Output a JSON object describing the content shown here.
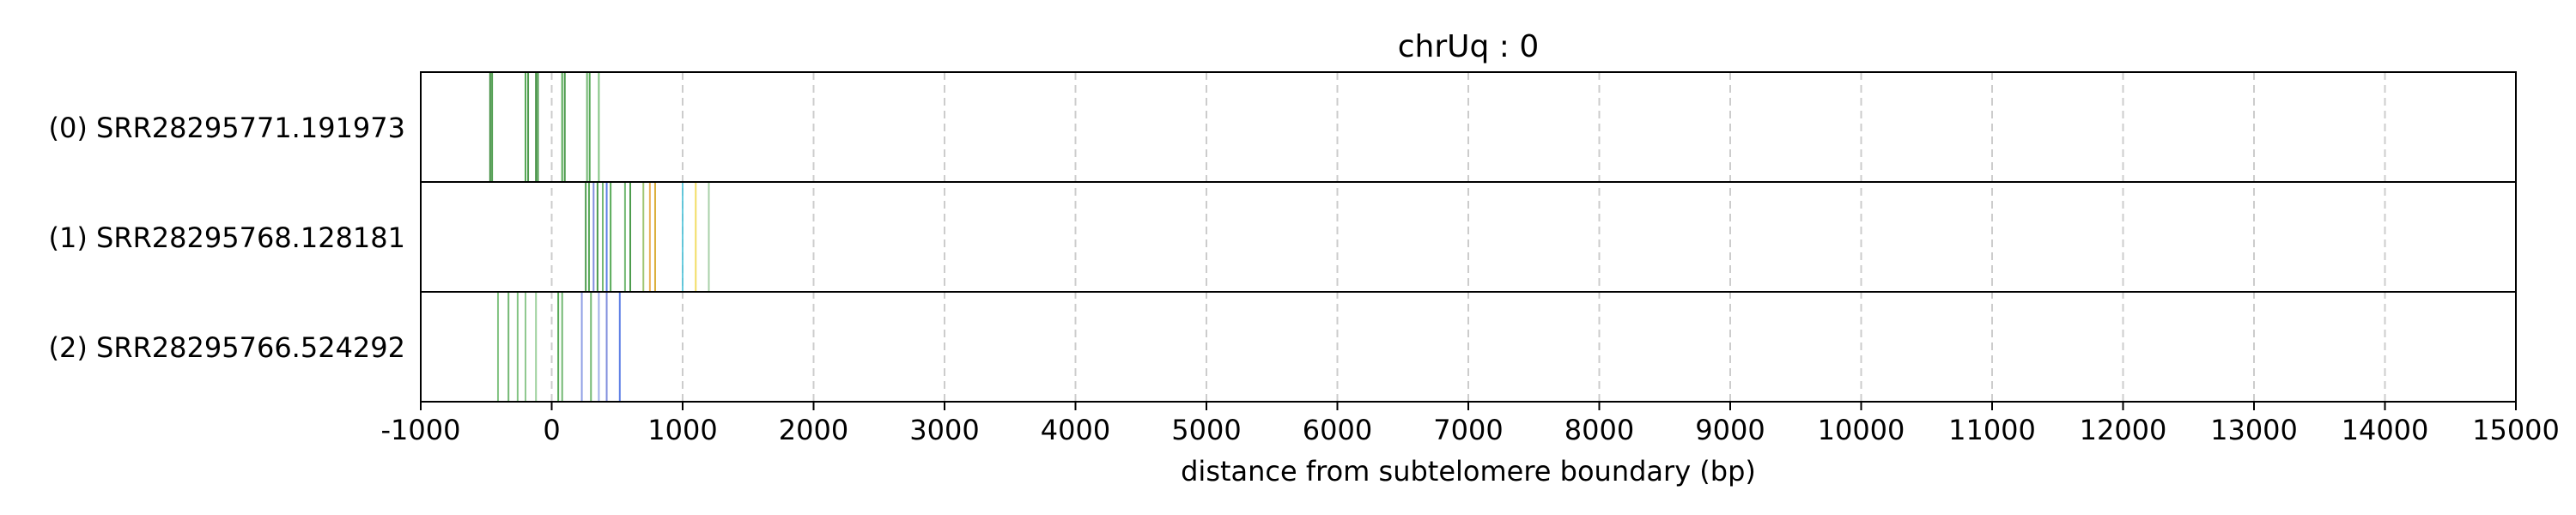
{
  "chart_data": {
    "type": "scatter",
    "title": "chrUq : 0",
    "xlabel": "distance from subtelomere boundary (bp)",
    "ylabel": "",
    "xlim": [
      -1000,
      15000
    ],
    "x_ticks": [
      -1000,
      0,
      1000,
      2000,
      3000,
      4000,
      5000,
      6000,
      7000,
      8000,
      9000,
      10000,
      11000,
      12000,
      13000,
      14000,
      15000
    ],
    "x_tick_labels": [
      "-1000",
      "0",
      "1000",
      "2000",
      "3000",
      "4000",
      "5000",
      "6000",
      "7000",
      "8000",
      "9000",
      "10000",
      "11000",
      "12000",
      "13000",
      "14000",
      "15000"
    ],
    "grid": "vertical dashed",
    "rows": [
      {
        "label": "(0) SRR28295771.191973",
        "marks": [
          {
            "x": -470,
            "color": "#1f7a1f"
          },
          {
            "x": -455,
            "color": "#2e8b2e"
          },
          {
            "x": -200,
            "color": "#3a9a3a"
          },
          {
            "x": -180,
            "color": "#2e8b2e"
          },
          {
            "x": -120,
            "color": "#1f7a1f"
          },
          {
            "x": -105,
            "color": "#2e8b2e"
          },
          {
            "x": 80,
            "color": "#3a9a3a"
          },
          {
            "x": 100,
            "color": "#2e8b2e"
          },
          {
            "x": 270,
            "color": "#5aab5a"
          },
          {
            "x": 290,
            "color": "#3a9a3a"
          },
          {
            "x": 360,
            "color": "#6cb86c"
          }
        ]
      },
      {
        "label": "(1) SRR28295768.128181",
        "marks": [
          {
            "x": 260,
            "color": "#2e8b2e"
          },
          {
            "x": 285,
            "color": "#3a9a3a"
          },
          {
            "x": 320,
            "color": "#6b7bd8"
          },
          {
            "x": 350,
            "color": "#2e8b2e"
          },
          {
            "x": 390,
            "color": "#5aab5a"
          },
          {
            "x": 420,
            "color": "#4169e1"
          },
          {
            "x": 450,
            "color": "#3a9a3a"
          },
          {
            "x": 560,
            "color": "#5aab5a"
          },
          {
            "x": 600,
            "color": "#2e8b2e"
          },
          {
            "x": 700,
            "color": "#8fbc5a"
          },
          {
            "x": 750,
            "color": "#e8a33a"
          },
          {
            "x": 790,
            "color": "#d4a017"
          },
          {
            "x": 1000,
            "color": "#4fc3d9"
          },
          {
            "x": 1100,
            "color": "#f0d84a"
          },
          {
            "x": 1200,
            "color": "#9ac89a"
          }
        ]
      },
      {
        "label": "(2) SRR28295766.524292",
        "marks": [
          {
            "x": -410,
            "color": "#6cb86c"
          },
          {
            "x": -330,
            "color": "#5aab5a"
          },
          {
            "x": -260,
            "color": "#6cb86c"
          },
          {
            "x": -200,
            "color": "#7cc07c"
          },
          {
            "x": -120,
            "color": "#8cc88c"
          },
          {
            "x": 50,
            "color": "#3a9a3a"
          },
          {
            "x": 80,
            "color": "#5aab5a"
          },
          {
            "x": 230,
            "color": "#7b8ee0"
          },
          {
            "x": 300,
            "color": "#5aab5a"
          },
          {
            "x": 360,
            "color": "#8fa0e6"
          },
          {
            "x": 420,
            "color": "#6b7bd8"
          },
          {
            "x": 520,
            "color": "#4169e1"
          }
        ]
      }
    ]
  }
}
